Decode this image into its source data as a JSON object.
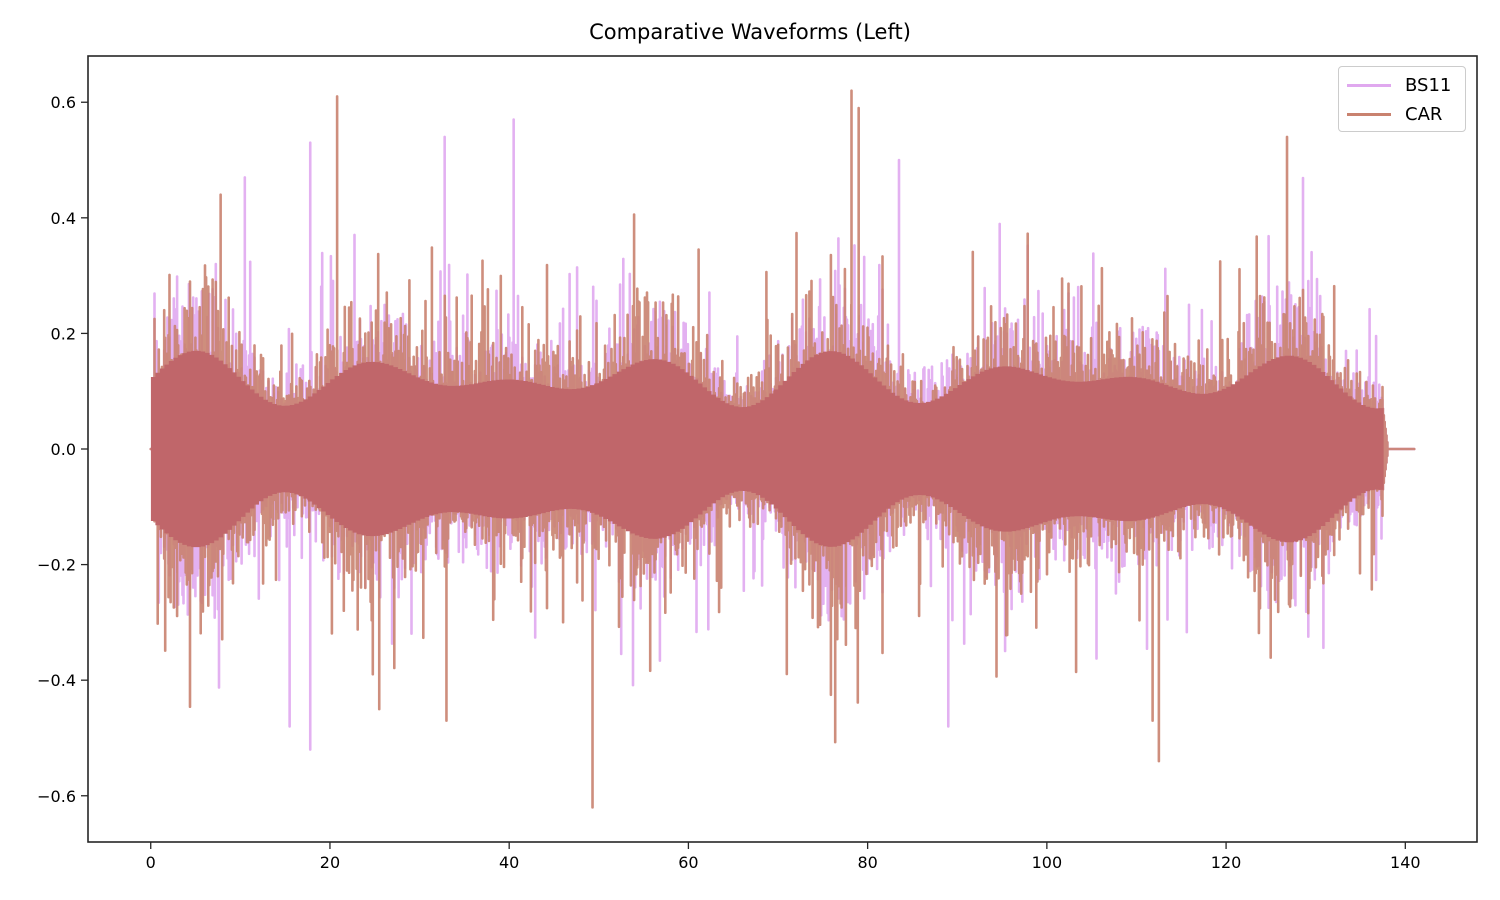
{
  "chart_data": {
    "type": "line",
    "title": "Comparative Waveforms (Left)",
    "xlabel": "",
    "ylabel": "",
    "xlim": [
      -7,
      148
    ],
    "ylim": [
      -0.68,
      0.68
    ],
    "x_ticks": [
      0,
      20,
      40,
      60,
      80,
      100,
      120,
      140
    ],
    "x_tick_labels": [
      "0",
      "20",
      "40",
      "60",
      "80",
      "100",
      "120",
      "140"
    ],
    "y_ticks": [
      0.6,
      0.4,
      0.2,
      0.0,
      -0.2,
      -0.4,
      -0.6
    ],
    "y_tick_labels": [
      "0.6",
      "0.4",
      "0.2",
      "0.0",
      "−0.2",
      "−0.4",
      "−0.6"
    ],
    "grid": false,
    "legend_position": "upper right",
    "series": [
      {
        "name": "BS11",
        "color": "#e0a8ef",
        "alpha": 0.9,
        "signal_start": 0.3,
        "signal_end": 137.5,
        "silence_end": 141.0,
        "typical_amplitude": 0.2,
        "max_positive_peak": {
          "x": 40.5,
          "y": 0.57
        },
        "max_negative_peak": {
          "x": 17.8,
          "y": -0.52
        },
        "notable_peaks": [
          {
            "x": 17.8,
            "y": 0.53
          },
          {
            "x": 10.5,
            "y": 0.47
          },
          {
            "x": 32.8,
            "y": 0.54
          },
          {
            "x": 83.5,
            "y": 0.5
          },
          {
            "x": 89.0,
            "y": -0.48
          },
          {
            "x": 15.5,
            "y": -0.48
          }
        ]
      },
      {
        "name": "CAR",
        "color": "#c9826f",
        "alpha": 0.9,
        "signal_start": 0.3,
        "signal_end": 137.5,
        "silence_end": 141.0,
        "typical_amplitude": 0.2,
        "max_positive_peak": {
          "x": 78.2,
          "y": 0.62
        },
        "max_negative_peak": {
          "x": 49.3,
          "y": -0.62
        },
        "notable_peaks": [
          {
            "x": 20.8,
            "y": 0.61
          },
          {
            "x": 79.0,
            "y": 0.59
          },
          {
            "x": 126.8,
            "y": 0.54
          },
          {
            "x": 112.5,
            "y": -0.54
          },
          {
            "x": 111.8,
            "y": -0.47
          },
          {
            "x": 7.8,
            "y": 0.44
          },
          {
            "x": 33.0,
            "y": -0.47
          },
          {
            "x": 25.5,
            "y": -0.45
          }
        ]
      }
    ]
  },
  "legend": {
    "items": [
      {
        "label": "BS11",
        "color": "#e0a8ef"
      },
      {
        "label": "CAR",
        "color": "#c9826f"
      }
    ]
  },
  "overlap_color": "#c0666a"
}
